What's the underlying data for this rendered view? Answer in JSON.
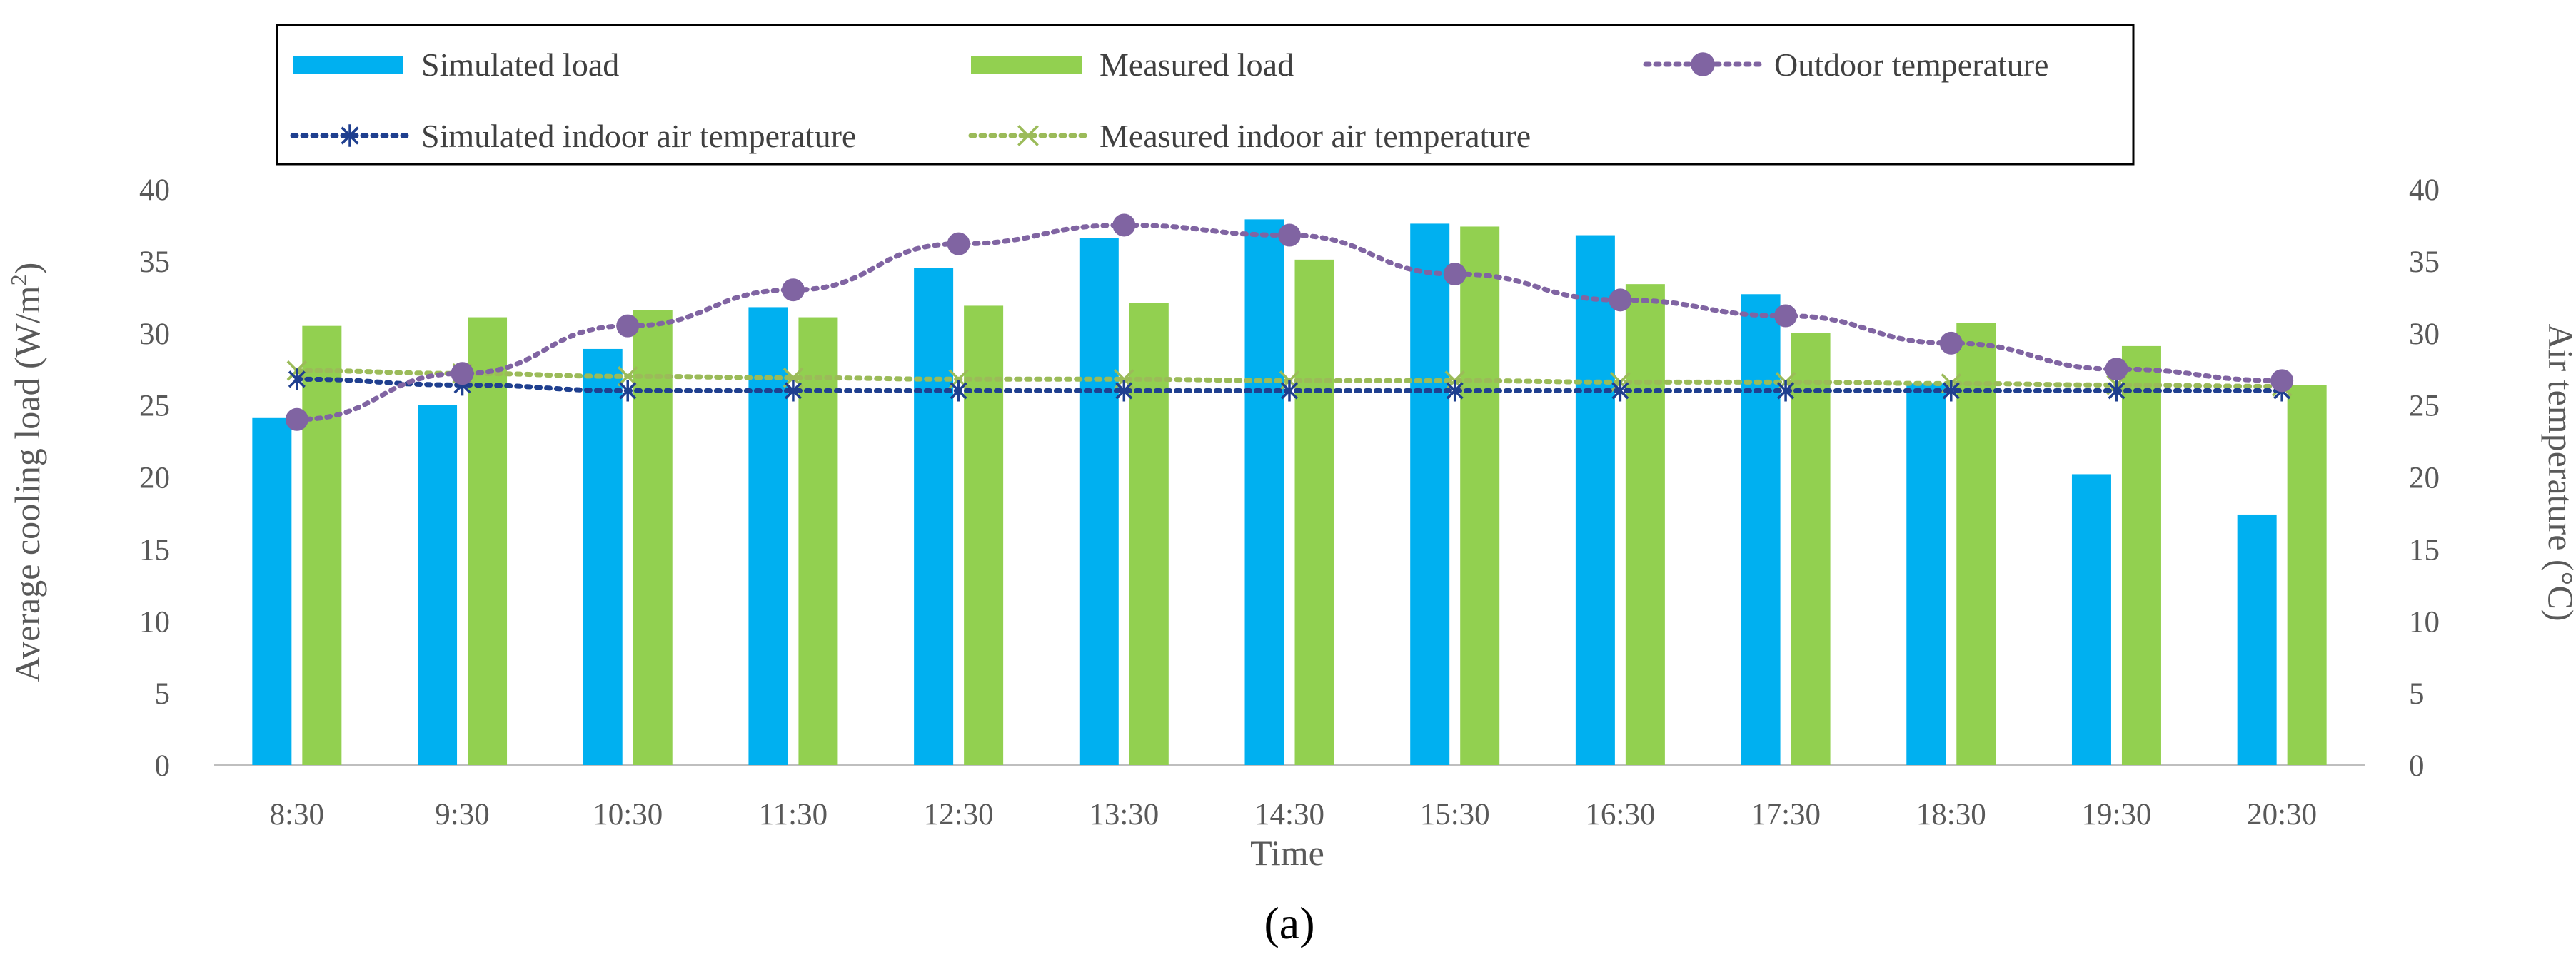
{
  "chart_data": {
    "type": "bar",
    "caption": "(a)",
    "xlabel": "Time",
    "ylabel_left": "Average cooling load (W/m²)",
    "ylabel_right": "Air temperature (°C)",
    "ylim_left": [
      0,
      40
    ],
    "ylim_right": [
      0,
      40
    ],
    "yticks_left": [
      0,
      5,
      10,
      15,
      20,
      25,
      30,
      35,
      40
    ],
    "yticks_right": [
      0,
      5,
      10,
      15,
      20,
      25,
      30,
      35,
      40
    ],
    "grid": false,
    "legend_position": "top",
    "categories": [
      "8:30",
      "9:30",
      "10:30",
      "11:30",
      "12:30",
      "13:30",
      "14:30",
      "15:30",
      "16:30",
      "17:30",
      "18:30",
      "19:30",
      "20:30"
    ],
    "series": [
      {
        "name": "Simulated load",
        "kind": "bar",
        "axis": "left",
        "color": "#00B0F0",
        "values": [
          24.1,
          25.0,
          28.9,
          31.8,
          34.5,
          36.6,
          37.9,
          37.6,
          36.8,
          32.7,
          26.5,
          20.2,
          17.4
        ]
      },
      {
        "name": "Measured load",
        "kind": "bar",
        "axis": "left",
        "color": "#92D050",
        "values": [
          30.5,
          31.1,
          31.6,
          31.1,
          31.9,
          32.1,
          35.1,
          37.4,
          33.4,
          30.0,
          30.7,
          29.1,
          26.4
        ]
      },
      {
        "name": "Outdoor temperature",
        "kind": "line",
        "axis": "right",
        "color": "#8064A2",
        "marker": "circle",
        "values": [
          24.0,
          27.2,
          30.5,
          33.0,
          36.2,
          37.5,
          36.8,
          34.1,
          32.3,
          31.2,
          29.3,
          27.5,
          26.7
        ]
      },
      {
        "name": "Simulated indoor air temperature",
        "kind": "line",
        "axis": "right",
        "color": "#1F3F8F",
        "marker": "asterisk",
        "values": [
          26.8,
          26.4,
          26.0,
          26.0,
          26.0,
          26.0,
          26.0,
          26.0,
          26.0,
          26.0,
          26.0,
          26.0,
          26.0
        ]
      },
      {
        "name": "Measured indoor air temperature",
        "kind": "line",
        "axis": "right",
        "color": "#9BBB59",
        "marker": "x",
        "values": [
          27.4,
          27.2,
          27.0,
          26.9,
          26.8,
          26.8,
          26.7,
          26.7,
          26.6,
          26.6,
          26.5,
          26.4,
          26.3
        ]
      }
    ]
  }
}
